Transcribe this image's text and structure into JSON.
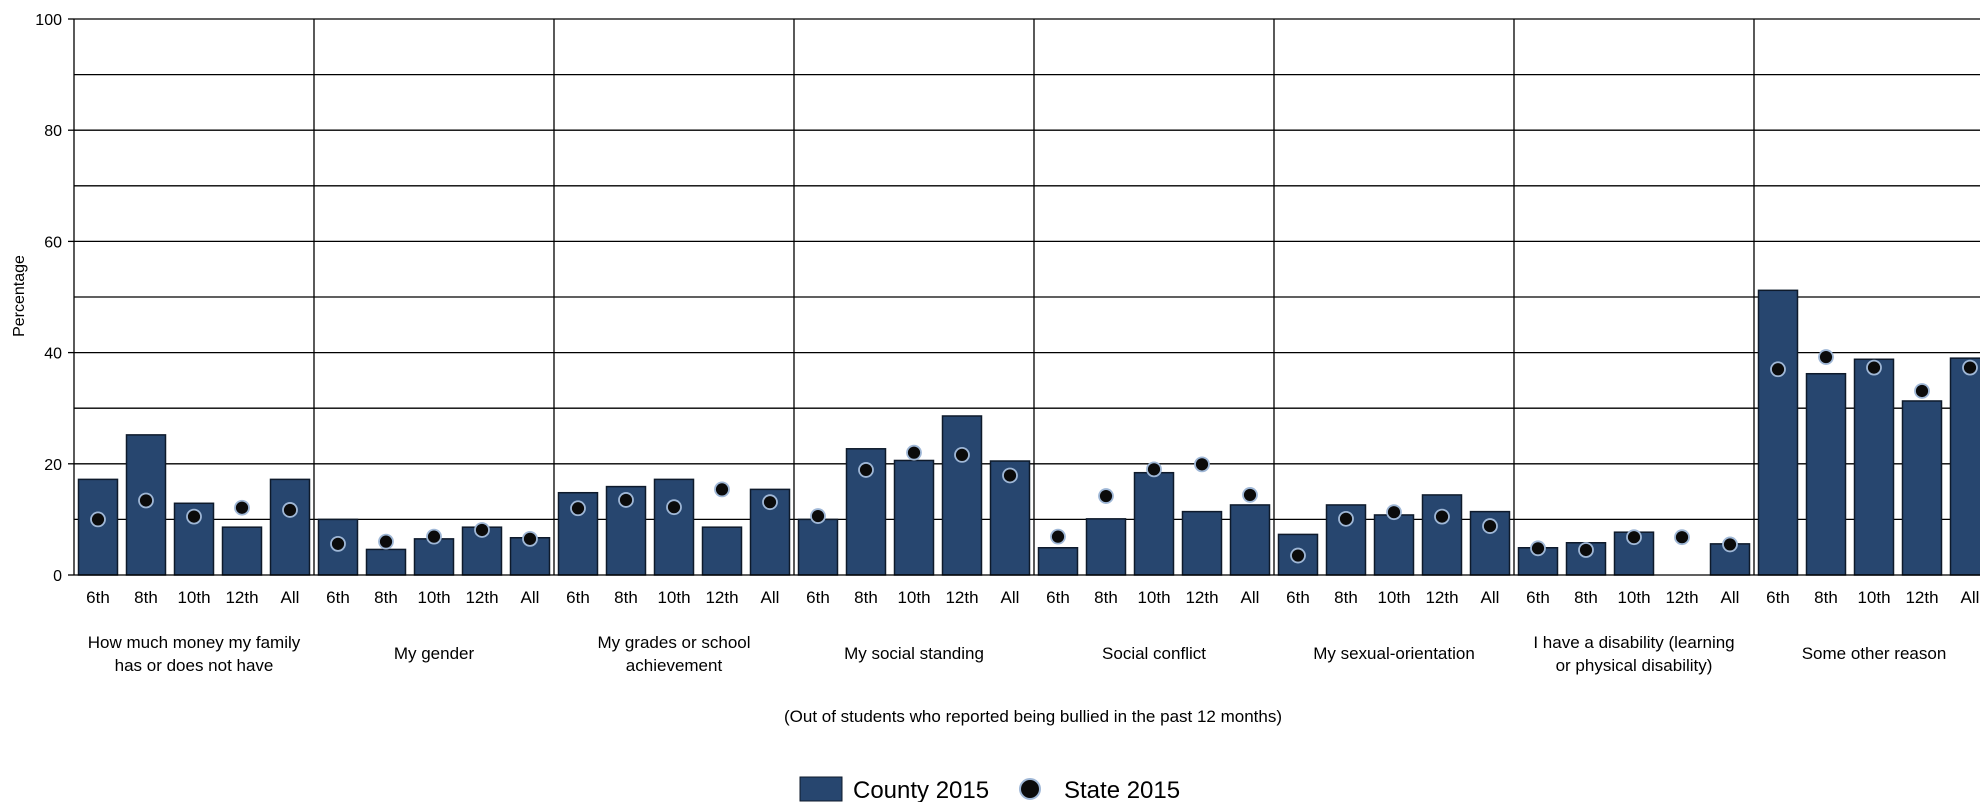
{
  "chart_data": {
    "type": "bar",
    "ylabel": "Percentage",
    "xlabel": "(Out of students who reported being bullied in the past 12 months)",
    "ylim": [
      0,
      100
    ],
    "yticks": [
      0,
      20,
      40,
      60,
      80,
      100
    ],
    "grid": true,
    "legend_position": "bottom",
    "colors": {
      "bar": "#27466f",
      "bar_stroke": "#0e1a2b",
      "dot": "#0b0b0b",
      "dot_ring": "#9fb7d6",
      "grid": "#000000"
    },
    "sub_categories": [
      "6th",
      "8th",
      "10th",
      "12th",
      "All"
    ],
    "groups": [
      {
        "label": [
          "How much money my family",
          "has or does not have"
        ],
        "county": [
          17.2,
          25.2,
          12.9,
          8.6,
          17.2
        ],
        "state": [
          10.0,
          13.4,
          10.5,
          12.1,
          11.7
        ]
      },
      {
        "label": [
          "My gender"
        ],
        "county": [
          10.0,
          4.6,
          6.5,
          8.6,
          6.7
        ],
        "state": [
          5.6,
          6.0,
          6.9,
          8.1,
          6.5
        ]
      },
      {
        "label": [
          "My grades or school",
          "achievement"
        ],
        "county": [
          14.8,
          15.9,
          17.2,
          8.6,
          15.4
        ],
        "state": [
          12.0,
          13.5,
          12.2,
          15.4,
          13.1
        ]
      },
      {
        "label": [
          "My social standing"
        ],
        "county": [
          10.0,
          22.7,
          20.6,
          28.6,
          20.5
        ],
        "state": [
          10.6,
          18.9,
          22.0,
          21.6,
          17.9
        ]
      },
      {
        "label": [
          "Social conflict"
        ],
        "county": [
          4.9,
          10.1,
          18.4,
          11.4,
          12.6
        ],
        "state": [
          6.9,
          14.2,
          19.0,
          19.9,
          14.4
        ]
      },
      {
        "label": [
          "My sexual-orientation"
        ],
        "county": [
          7.3,
          12.6,
          10.8,
          14.4,
          11.4
        ],
        "state": [
          3.5,
          10.1,
          11.3,
          10.5,
          8.8
        ]
      },
      {
        "label": [
          "I have a disability (learning",
          "or physical disability)"
        ],
        "county": [
          4.9,
          5.8,
          7.7,
          null,
          5.6
        ],
        "state": [
          4.8,
          4.5,
          6.8,
          6.8,
          5.5
        ]
      },
      {
        "label": [
          "Some other reason"
        ],
        "county": [
          51.2,
          36.2,
          38.8,
          31.3,
          39.0
        ],
        "state": [
          37.0,
          39.2,
          37.3,
          33.1,
          37.3
        ]
      }
    ],
    "series": [
      {
        "name": "County 2015",
        "key": "county",
        "kind": "bar"
      },
      {
        "name": "State 2015",
        "key": "state",
        "kind": "dot"
      }
    ]
  }
}
